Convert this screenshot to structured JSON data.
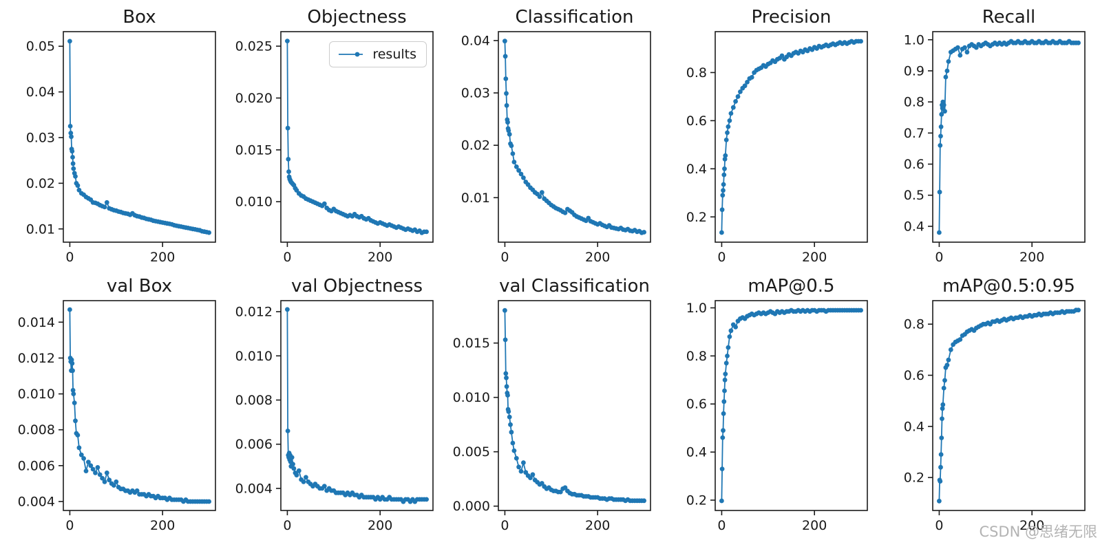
{
  "figure": {
    "background": "#ffffff",
    "watermark": "CSDN @思绪无限",
    "watermark_color": "#b3b3b3"
  },
  "chart_data": {
    "type": "line",
    "line_color": "#1f77b4",
    "marker": "point",
    "grid": false,
    "legend_position": "upper-right-of-Objectness-subplot",
    "x": [
      0,
      1,
      2,
      3,
      4,
      5,
      6,
      7,
      8,
      10,
      12,
      14,
      17,
      20,
      25,
      30,
      35,
      40,
      45,
      50,
      55,
      60,
      65,
      70,
      75,
      80,
      85,
      90,
      95,
      100,
      105,
      110,
      115,
      120,
      125,
      130,
      135,
      140,
      145,
      150,
      155,
      160,
      165,
      170,
      175,
      180,
      185,
      190,
      195,
      200,
      205,
      210,
      215,
      220,
      225,
      230,
      235,
      240,
      245,
      250,
      255,
      260,
      265,
      270,
      275,
      280,
      285,
      290,
      295,
      300
    ],
    "xlim": [
      -14,
      314
    ],
    "xticks": {
      "values": [
        0,
        200
      ],
      "labels": [
        "0",
        "200"
      ]
    },
    "charts": [
      {
        "title": "Box",
        "ylim": [
          0.0071,
          0.0532
        ],
        "yticks": {
          "values": [
            0.01,
            0.02,
            0.03,
            0.04,
            0.05
          ],
          "labels": [
            "0.01",
            "0.02",
            "0.03",
            "0.04",
            "0.05"
          ]
        },
        "legend": false,
        "values": [
          0.0511,
          0.0325,
          0.031,
          0.0302,
          0.0275,
          0.027,
          0.0257,
          0.0243,
          0.0232,
          0.0222,
          0.0215,
          0.02,
          0.0195,
          0.0185,
          0.0178,
          0.0175,
          0.017,
          0.0167,
          0.0164,
          0.0158,
          0.0157,
          0.0155,
          0.0152,
          0.015,
          0.0148,
          0.0158,
          0.0145,
          0.0143,
          0.0141,
          0.014,
          0.0138,
          0.0137,
          0.0135,
          0.0134,
          0.0133,
          0.0131,
          0.0134,
          0.013,
          0.0128,
          0.0127,
          0.0125,
          0.0124,
          0.0122,
          0.0121,
          0.012,
          0.0118,
          0.0117,
          0.0116,
          0.0115,
          0.0114,
          0.0113,
          0.0112,
          0.0111,
          0.011,
          0.0108,
          0.0107,
          0.0106,
          0.0105,
          0.0104,
          0.0103,
          0.0102,
          0.0101,
          0.01,
          0.0099,
          0.0098,
          0.0097,
          0.0095,
          0.0094,
          0.0093,
          0.0092
        ]
      },
      {
        "title": "Objectness",
        "ylim": [
          0.0061,
          0.0264
        ],
        "yticks": {
          "values": [
            0.01,
            0.015,
            0.02,
            0.025
          ],
          "labels": [
            "0.010",
            "0.015",
            "0.020",
            "0.025"
          ]
        },
        "legend": true,
        "legend_label": "results",
        "values": [
          0.0255,
          0.0171,
          0.0141,
          0.0129,
          0.0124,
          0.0122,
          0.0121,
          0.012,
          0.0119,
          0.0118,
          0.0117,
          0.0116,
          0.0113,
          0.0111,
          0.0108,
          0.0106,
          0.0105,
          0.0103,
          0.0102,
          0.0101,
          0.01,
          0.0099,
          0.0098,
          0.0097,
          0.0096,
          0.0098,
          0.0094,
          0.0092,
          0.0091,
          0.0093,
          0.0091,
          0.009,
          0.0089,
          0.0088,
          0.0087,
          0.0086,
          0.0087,
          0.0086,
          0.0088,
          0.0086,
          0.0085,
          0.0086,
          0.0084,
          0.0083,
          0.0084,
          0.0082,
          0.0081,
          0.008,
          0.0079,
          0.008,
          0.0079,
          0.0078,
          0.0077,
          0.0078,
          0.0077,
          0.0076,
          0.0075,
          0.0076,
          0.0075,
          0.0074,
          0.0073,
          0.0074,
          0.0073,
          0.0072,
          0.0073,
          0.0071,
          0.0072,
          0.007,
          0.0071,
          0.0071
        ]
      },
      {
        "title": "Classification",
        "ylim": [
          0.0015,
          0.0417
        ],
        "yticks": {
          "values": [
            0.01,
            0.02,
            0.03,
            0.04
          ],
          "labels": [
            "0.01",
            "0.02",
            "0.03",
            "0.04"
          ]
        },
        "legend": false,
        "values": [
          0.0399,
          0.037,
          0.0327,
          0.0299,
          0.0276,
          0.0249,
          0.0244,
          0.0232,
          0.0228,
          0.0221,
          0.0203,
          0.0199,
          0.0184,
          0.0168,
          0.0159,
          0.0152,
          0.0145,
          0.0138,
          0.013,
          0.0125,
          0.0119,
          0.0115,
          0.011,
          0.0107,
          0.0102,
          0.011,
          0.0098,
          0.0094,
          0.009,
          0.0086,
          0.0083,
          0.008,
          0.0078,
          0.0076,
          0.0073,
          0.0071,
          0.0078,
          0.0075,
          0.0072,
          0.0067,
          0.0064,
          0.0062,
          0.006,
          0.0058,
          0.0056,
          0.0061,
          0.0055,
          0.0053,
          0.0051,
          0.0049,
          0.0051,
          0.0048,
          0.0046,
          0.0044,
          0.0047,
          0.0043,
          0.0042,
          0.0041,
          0.004,
          0.0042,
          0.0039,
          0.0038,
          0.004,
          0.0037,
          0.0036,
          0.0038,
          0.0035,
          0.0036,
          0.0033,
          0.0034
        ]
      },
      {
        "title": "Precision",
        "ylim": [
          0.095,
          0.97
        ],
        "yticks": {
          "values": [
            0.2,
            0.4,
            0.6,
            0.8
          ],
          "labels": [
            "0.2",
            "0.4",
            "0.6",
            "0.8"
          ]
        },
        "legend": false,
        "values": [
          0.135,
          0.23,
          0.29,
          0.31,
          0.335,
          0.375,
          0.4,
          0.44,
          0.455,
          0.52,
          0.55,
          0.575,
          0.6,
          0.63,
          0.655,
          0.68,
          0.7,
          0.72,
          0.735,
          0.745,
          0.76,
          0.775,
          0.78,
          0.8,
          0.81,
          0.815,
          0.82,
          0.83,
          0.825,
          0.835,
          0.84,
          0.85,
          0.845,
          0.855,
          0.86,
          0.87,
          0.855,
          0.865,
          0.875,
          0.87,
          0.88,
          0.885,
          0.88,
          0.89,
          0.885,
          0.895,
          0.89,
          0.9,
          0.895,
          0.905,
          0.9,
          0.91,
          0.905,
          0.91,
          0.915,
          0.91,
          0.915,
          0.92,
          0.915,
          0.92,
          0.925,
          0.92,
          0.925,
          0.92,
          0.925,
          0.93,
          0.925,
          0.93,
          0.93,
          0.93
        ]
      },
      {
        "title": "Recall",
        "ylim": [
          0.349,
          1.026
        ],
        "yticks": {
          "values": [
            0.4,
            0.5,
            0.6,
            0.7,
            0.8,
            0.9,
            1.0
          ],
          "labels": [
            "0.4",
            "0.5",
            "0.6",
            "0.7",
            "0.8",
            "0.9",
            "1.0"
          ]
        },
        "legend": false,
        "values": [
          0.38,
          0.51,
          0.66,
          0.69,
          0.72,
          0.76,
          0.79,
          0.78,
          0.8,
          0.79,
          0.77,
          0.88,
          0.9,
          0.93,
          0.96,
          0.965,
          0.97,
          0.975,
          0.95,
          0.97,
          0.975,
          0.96,
          0.98,
          0.985,
          0.98,
          0.975,
          0.985,
          0.98,
          0.985,
          0.99,
          0.985,
          0.98,
          0.985,
          0.99,
          0.985,
          0.99,
          0.985,
          0.99,
          0.985,
          0.99,
          0.995,
          0.99,
          0.99,
          0.995,
          0.99,
          0.99,
          0.995,
          0.99,
          0.99,
          0.995,
          0.99,
          0.99,
          0.995,
          0.99,
          0.99,
          0.995,
          0.99,
          0.99,
          0.995,
          0.99,
          0.99,
          0.995,
          0.99,
          0.99,
          0.99,
          0.995,
          0.99,
          0.99,
          0.99,
          0.99
        ]
      },
      {
        "title": "val Box",
        "ylim": [
          0.0035,
          0.0152
        ],
        "yticks": {
          "values": [
            0.004,
            0.006,
            0.008,
            0.01,
            0.012,
            0.014
          ],
          "labels": [
            "0.004",
            "0.006",
            "0.008",
            "0.010",
            "0.012",
            "0.014"
          ]
        },
        "legend": false,
        "values": [
          0.0147,
          0.012,
          0.0118,
          0.0113,
          0.0119,
          0.0117,
          0.0113,
          0.0102,
          0.01,
          0.0095,
          0.0085,
          0.0078,
          0.0077,
          0.007,
          0.0066,
          0.0064,
          0.0057,
          0.0062,
          0.006,
          0.0058,
          0.0056,
          0.0059,
          0.0055,
          0.0053,
          0.0051,
          0.0056,
          0.0052,
          0.005,
          0.0049,
          0.0051,
          0.0048,
          0.0047,
          0.0047,
          0.0046,
          0.0046,
          0.0045,
          0.0046,
          0.0045,
          0.0046,
          0.0044,
          0.0044,
          0.0044,
          0.0043,
          0.0044,
          0.0043,
          0.0043,
          0.0042,
          0.0043,
          0.0042,
          0.0042,
          0.0042,
          0.0041,
          0.0042,
          0.0041,
          0.0041,
          0.0041,
          0.0041,
          0.0041,
          0.004,
          0.0041,
          0.004,
          0.004,
          0.004,
          0.004,
          0.004,
          0.004,
          0.004,
          0.004,
          0.004,
          0.004
        ]
      },
      {
        "title": "val Objectness",
        "ylim": [
          0.003,
          0.0125
        ],
        "yticks": {
          "values": [
            0.004,
            0.006,
            0.008,
            0.01,
            0.012
          ],
          "labels": [
            "0.004",
            "0.006",
            "0.008",
            "0.010",
            "0.012"
          ]
        },
        "legend": false,
        "values": [
          0.0121,
          0.0066,
          0.0055,
          0.0054,
          0.0056,
          0.0053,
          0.0055,
          0.0052,
          0.005,
          0.0054,
          0.0051,
          0.0049,
          0.0047,
          0.0046,
          0.0048,
          0.0044,
          0.0043,
          0.0045,
          0.0043,
          0.0042,
          0.0041,
          0.0042,
          0.0041,
          0.004,
          0.004,
          0.0041,
          0.0039,
          0.004,
          0.0039,
          0.0039,
          0.0038,
          0.0038,
          0.0038,
          0.0038,
          0.0037,
          0.0038,
          0.0037,
          0.0038,
          0.0037,
          0.0037,
          0.0036,
          0.0037,
          0.0036,
          0.0036,
          0.0036,
          0.0036,
          0.0036,
          0.0035,
          0.0036,
          0.0035,
          0.0036,
          0.0035,
          0.0035,
          0.0036,
          0.0035,
          0.0035,
          0.0035,
          0.0035,
          0.0035,
          0.0034,
          0.0035,
          0.0035,
          0.0034,
          0.0035,
          0.0034,
          0.0035,
          0.0035,
          0.0035,
          0.0035,
          0.0035
        ]
      },
      {
        "title": "val Classification",
        "ylim": [
          -0.0004,
          0.0189
        ],
        "yticks": {
          "values": [
            0.0,
            0.005,
            0.01,
            0.015
          ],
          "labels": [
            "0.000",
            "0.005",
            "0.010",
            "0.015"
          ]
        },
        "legend": false,
        "values": [
          0.018,
          0.0153,
          0.0122,
          0.0118,
          0.011,
          0.0104,
          0.0102,
          0.0089,
          0.0087,
          0.0082,
          0.0075,
          0.0068,
          0.0058,
          0.0051,
          0.0044,
          0.0036,
          0.0032,
          0.004,
          0.0031,
          0.0028,
          0.0026,
          0.0029,
          0.0024,
          0.0022,
          0.002,
          0.0021,
          0.0018,
          0.0016,
          0.0017,
          0.0015,
          0.0014,
          0.0014,
          0.0013,
          0.0013,
          0.0016,
          0.0017,
          0.0014,
          0.0012,
          0.0011,
          0.0011,
          0.001,
          0.001,
          0.001,
          0.0009,
          0.0009,
          0.0009,
          0.0008,
          0.0008,
          0.0008,
          0.0008,
          0.0007,
          0.0007,
          0.0007,
          0.0006,
          0.0007,
          0.0007,
          0.0006,
          0.0006,
          0.0006,
          0.0006,
          0.0006,
          0.0005,
          0.0006,
          0.0005,
          0.0005,
          0.0005,
          0.0005,
          0.0005,
          0.0005,
          0.0005
        ]
      },
      {
        "title": "mAP@0.5",
        "ylim": [
          0.157,
          1.03
        ],
        "yticks": {
          "values": [
            0.2,
            0.4,
            0.6,
            0.8,
            1.0
          ],
          "labels": [
            "0.2",
            "0.4",
            "0.6",
            "0.8",
            "1.0"
          ]
        },
        "legend": false,
        "values": [
          0.197,
          0.33,
          0.46,
          0.49,
          0.56,
          0.61,
          0.655,
          0.7,
          0.725,
          0.77,
          0.8,
          0.835,
          0.88,
          0.905,
          0.93,
          0.92,
          0.945,
          0.955,
          0.96,
          0.955,
          0.965,
          0.97,
          0.975,
          0.97,
          0.975,
          0.98,
          0.975,
          0.98,
          0.975,
          0.98,
          0.985,
          0.98,
          0.975,
          0.985,
          0.98,
          0.985,
          0.98,
          0.985,
          0.985,
          0.99,
          0.985,
          0.985,
          0.99,
          0.985,
          0.99,
          0.985,
          0.99,
          0.985,
          0.99,
          0.99,
          0.985,
          0.99,
          0.99,
          0.99,
          0.985,
          0.99,
          0.99,
          0.99,
          0.99,
          0.99,
          0.99,
          0.99,
          0.99,
          0.99,
          0.99,
          0.99,
          0.99,
          0.99,
          0.99,
          0.99
        ]
      },
      {
        "title": "mAP@0.5:0.95",
        "ylim": [
          0.071,
          0.892
        ],
        "yticks": {
          "values": [
            0.2,
            0.4,
            0.6,
            0.8
          ],
          "labels": [
            "0.2",
            "0.4",
            "0.6",
            "0.8"
          ]
        },
        "legend": false,
        "values": [
          0.108,
          0.19,
          0.185,
          0.24,
          0.29,
          0.355,
          0.43,
          0.47,
          0.485,
          0.55,
          0.58,
          0.63,
          0.64,
          0.66,
          0.7,
          0.72,
          0.73,
          0.735,
          0.74,
          0.755,
          0.76,
          0.77,
          0.775,
          0.78,
          0.775,
          0.785,
          0.79,
          0.795,
          0.8,
          0.8,
          0.805,
          0.8,
          0.81,
          0.81,
          0.815,
          0.81,
          0.815,
          0.82,
          0.815,
          0.82,
          0.825,
          0.82,
          0.825,
          0.825,
          0.83,
          0.825,
          0.83,
          0.83,
          0.835,
          0.83,
          0.835,
          0.835,
          0.84,
          0.835,
          0.84,
          0.84,
          0.84,
          0.845,
          0.84,
          0.845,
          0.845,
          0.845,
          0.85,
          0.845,
          0.85,
          0.85,
          0.85,
          0.85,
          0.855,
          0.855
        ]
      }
    ]
  }
}
